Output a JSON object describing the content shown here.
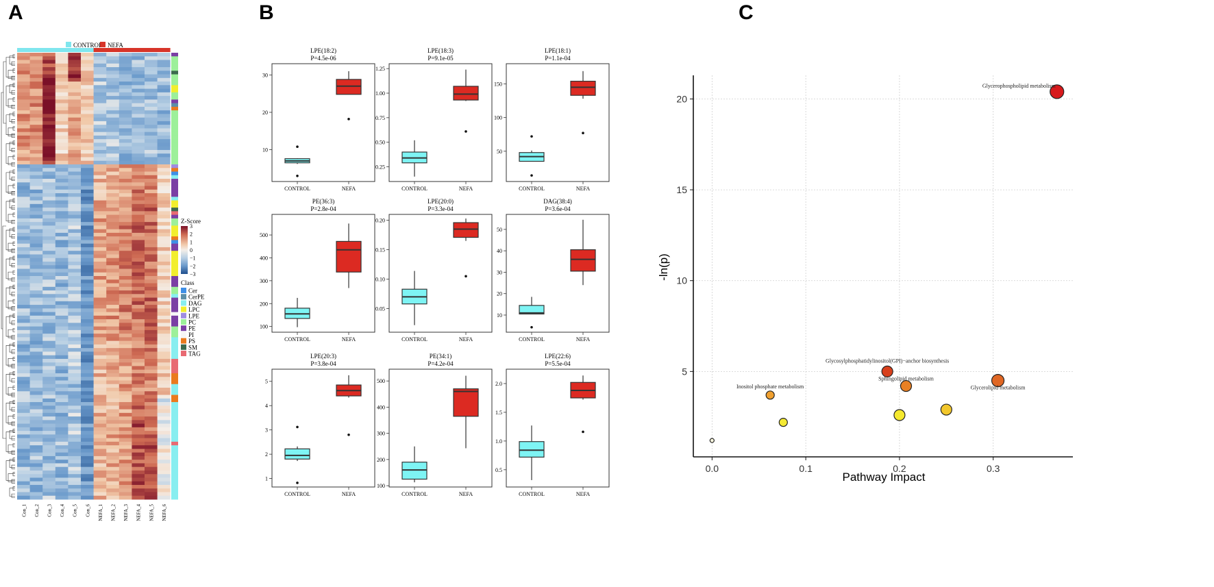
{
  "panels": {
    "a": {
      "letter": "A"
    },
    "b": {
      "letter": "B"
    },
    "c": {
      "letter": "C"
    }
  },
  "heatmap": {
    "group_legend": [
      {
        "label": "CONTROL",
        "color": "#7fe6ee"
      },
      {
        "label": "NEFA",
        "color": "#d7352a"
      }
    ],
    "columns": [
      "Con_1",
      "Con_2",
      "Con_3",
      "Con_4",
      "Con_5",
      "Con_6",
      "NEFA_1",
      "NEFA_2",
      "NEFA_3",
      "NEFA_4",
      "NEFA_5",
      "NEFA_6"
    ],
    "column_groups": [
      "CONTROL",
      "CONTROL",
      "CONTROL",
      "CONTROL",
      "CONTROL",
      "CONTROL",
      "NEFA",
      "NEFA",
      "NEFA",
      "NEFA",
      "NEFA",
      "NEFA"
    ],
    "zscore_title": "Z-Score",
    "zscore_ticks": [
      "3",
      "2",
      "1",
      "0",
      "−1",
      "−2",
      "−3"
    ],
    "zscore_range": [
      -3,
      3
    ],
    "class_title": "Class",
    "classes": [
      {
        "label": "Cer",
        "color": "#3f8fe6"
      },
      {
        "label": "CerPE",
        "color": "#5d8fa8"
      },
      {
        "label": "DAG",
        "color": "#88eef0"
      },
      {
        "label": "LPC",
        "color": "#f2ee2e"
      },
      {
        "label": "LPE",
        "color": "#a08de0"
      },
      {
        "label": "PC",
        "color": "#9df09a"
      },
      {
        "label": "PE",
        "color": "#7b3fa4"
      },
      {
        "label": "PI",
        "color": "#f6f6f6"
      },
      {
        "label": "PS",
        "color": "#ea7a1e"
      },
      {
        "label": "SM",
        "color": "#3c6a4e"
      },
      {
        "label": "TAG",
        "color": "#e86a72"
      }
    ]
  },
  "chart_data": [
    {
      "type": "box",
      "panel": "B",
      "categories": [
        "CONTROL",
        "NEFA"
      ],
      "colors": [
        "#7ef4f4",
        "#dc2a22"
      ],
      "plots": [
        {
          "title": "LPE(18:2)",
          "pvalue": "P=4.5e-06",
          "ylim": [
            1.5,
            33
          ],
          "yticks": [
            10,
            20,
            30
          ],
          "ytick_labels": [
            "10",
            "20",
            "30"
          ],
          "boxes": [
            {
              "min": 6.2,
              "q1": 6.5,
              "median": 7.0,
              "q3": 7.6,
              "max": 7.7,
              "outliers": [
                10.8,
                3.0
              ]
            },
            {
              "min": 24.8,
              "q1": 24.8,
              "median": 27.0,
              "q3": 28.8,
              "max": 31.0,
              "outliers": [
                18.2
              ]
            }
          ]
        },
        {
          "title": "LPE(18:3)",
          "pvalue": "P=9.1e-05",
          "ylim": [
            0.1,
            1.3
          ],
          "yticks": [
            0.25,
            0.5,
            0.75,
            1.0,
            1.25
          ],
          "ytick_labels": [
            "0.25",
            "0.50",
            "0.75",
            "1.00",
            "1.25"
          ],
          "boxes": [
            {
              "min": 0.15,
              "q1": 0.29,
              "median": 0.34,
              "q3": 0.4,
              "max": 0.52,
              "outliers": []
            },
            {
              "min": 0.92,
              "q1": 0.93,
              "median": 0.99,
              "q3": 1.07,
              "max": 1.24,
              "outliers": [
                0.61
              ]
            }
          ]
        },
        {
          "title": "LPE(18:1)",
          "pvalue": "P=1.1e-04",
          "ylim": [
            5,
            180
          ],
          "yticks": [
            50,
            100,
            150
          ],
          "ytick_labels": [
            "50",
            "100",
            "150"
          ],
          "boxes": [
            {
              "min": 35,
              "q1": 35,
              "median": 42,
              "q3": 48,
              "max": 51,
              "outliers": [
                72,
                14
              ]
            },
            {
              "min": 128,
              "q1": 133,
              "median": 145,
              "q3": 154,
              "max": 169,
              "outliers": [
                77
              ]
            }
          ]
        },
        {
          "title": "PE(36:3)",
          "pvalue": "P=2.8e-04",
          "ylim": [
            75,
            590
          ],
          "yticks": [
            100,
            200,
            300,
            400,
            500
          ],
          "ytick_labels": [
            "100",
            "200",
            "300",
            "400",
            "500"
          ],
          "boxes": [
            {
              "min": 97,
              "q1": 135,
              "median": 155,
              "q3": 180,
              "max": 225,
              "outliers": []
            },
            {
              "min": 268,
              "q1": 338,
              "median": 435,
              "q3": 472,
              "max": 550,
              "outliers": []
            }
          ]
        },
        {
          "title": "LPE(20:0)",
          "pvalue": "P=3.3e-04",
          "ylim": [
            0.01,
            0.21
          ],
          "yticks": [
            0.05,
            0.1,
            0.15,
            0.2
          ],
          "ytick_labels": [
            "0.05",
            "0.10",
            "0.15",
            "0.20"
          ],
          "boxes": [
            {
              "min": 0.022,
              "q1": 0.058,
              "median": 0.07,
              "q3": 0.083,
              "max": 0.114,
              "outliers": []
            },
            {
              "min": 0.165,
              "q1": 0.171,
              "median": 0.185,
              "q3": 0.196,
              "max": 0.203,
              "outliers": [
                0.105
              ]
            }
          ]
        },
        {
          "title": "DAG(38:4)",
          "pvalue": "P=3.6e-04",
          "ylim": [
            2,
            57
          ],
          "yticks": [
            10,
            20,
            30,
            40,
            50
          ],
          "ytick_labels": [
            "10",
            "20",
            "30",
            "40",
            "50"
          ],
          "boxes": [
            {
              "min": 10.5,
              "q1": 10.5,
              "median": 11.0,
              "q3": 14.5,
              "max": 18.5,
              "outliers": [
                4.3
              ]
            },
            {
              "min": 24,
              "q1": 30.5,
              "median": 36,
              "q3": 40.5,
              "max": 54.5,
              "outliers": []
            }
          ]
        },
        {
          "title": "LPE(20:3)",
          "pvalue": "P=3.8e-04",
          "ylim": [
            0.65,
            5.5
          ],
          "yticks": [
            1,
            2,
            3,
            4,
            5
          ],
          "ytick_labels": [
            "1",
            "2",
            "3",
            "4",
            "5"
          ],
          "boxes": [
            {
              "min": 1.72,
              "q1": 1.8,
              "median": 1.95,
              "q3": 2.22,
              "max": 2.32,
              "outliers": [
                3.12,
                0.82
              ]
            },
            {
              "min": 4.33,
              "q1": 4.4,
              "median": 4.62,
              "q3": 4.85,
              "max": 5.25,
              "outliers": [
                2.8
              ]
            }
          ]
        },
        {
          "title": "PE(34:1)",
          "pvalue": "P=4.2e-04",
          "ylim": [
            95,
            545
          ],
          "yticks": [
            100,
            200,
            300,
            400,
            500
          ],
          "ytick_labels": [
            "100",
            "200",
            "300",
            "400",
            "500"
          ],
          "boxes": [
            {
              "min": 113,
              "q1": 125,
              "median": 160,
              "q3": 190,
              "max": 250,
              "outliers": []
            },
            {
              "min": 243,
              "q1": 365,
              "median": 460,
              "q3": 470,
              "max": 520,
              "outliers": []
            }
          ]
        },
        {
          "title": "LPE(22:6)",
          "pvalue": "P=5.5e-04",
          "ylim": [
            0.2,
            2.25
          ],
          "yticks": [
            0.5,
            1.0,
            1.5,
            2.0
          ],
          "ytick_labels": [
            "0.5",
            "1.0",
            "1.5",
            "2.0"
          ],
          "boxes": [
            {
              "min": 0.32,
              "q1": 0.72,
              "median": 0.84,
              "q3": 0.99,
              "max": 1.27,
              "outliers": []
            },
            {
              "min": 1.72,
              "q1": 1.75,
              "median": 1.88,
              "q3": 2.02,
              "max": 2.14,
              "outliers": [
                1.16
              ]
            }
          ]
        }
      ]
    },
    {
      "type": "scatter",
      "panel": "C",
      "xlabel": "Pathway Impact",
      "ylabel": "-ln(p)",
      "xlim": [
        -0.02,
        0.385
      ],
      "ylim": [
        0.3,
        21.3
      ],
      "xticks": [
        0.0,
        0.1,
        0.2,
        0.3
      ],
      "xtick_labels": [
        "0.0",
        "0.1",
        "0.2",
        "0.3"
      ],
      "yticks": [
        5,
        10,
        15,
        20
      ],
      "ytick_labels": [
        "5",
        "10",
        "15",
        "20"
      ],
      "grid": true,
      "points": [
        {
          "x": 0.368,
          "y": 20.4,
          "size": 10,
          "color": "#d7191c",
          "label": "Glycerophospholipid metabolism"
        },
        {
          "x": 0.187,
          "y": 5.0,
          "size": 8,
          "color": "#d8401c",
          "label": "Glycosylphosphatidylinositol(GPI)−anchor biosynthesis"
        },
        {
          "x": 0.207,
          "y": 4.2,
          "size": 8,
          "color": "#e88024",
          "label": "Sphingolipid metabolism"
        },
        {
          "x": 0.305,
          "y": 4.5,
          "size": 9,
          "color": "#e06724",
          "label": "Glycerolipid metabolism"
        },
        {
          "x": 0.062,
          "y": 3.7,
          "size": 6,
          "color": "#f0a030",
          "label": "Inositol phosphate metabolism"
        },
        {
          "x": 0.25,
          "y": 2.9,
          "size": 8,
          "color": "#f2c72c",
          "label": ""
        },
        {
          "x": 0.2,
          "y": 2.6,
          "size": 8,
          "color": "#f5e92e",
          "label": ""
        },
        {
          "x": 0.076,
          "y": 2.2,
          "size": 6,
          "color": "#f5ea34",
          "label": ""
        },
        {
          "x": 0.0,
          "y": 1.2,
          "size": 3,
          "color": "#fffbe0",
          "label": ""
        }
      ]
    }
  ]
}
